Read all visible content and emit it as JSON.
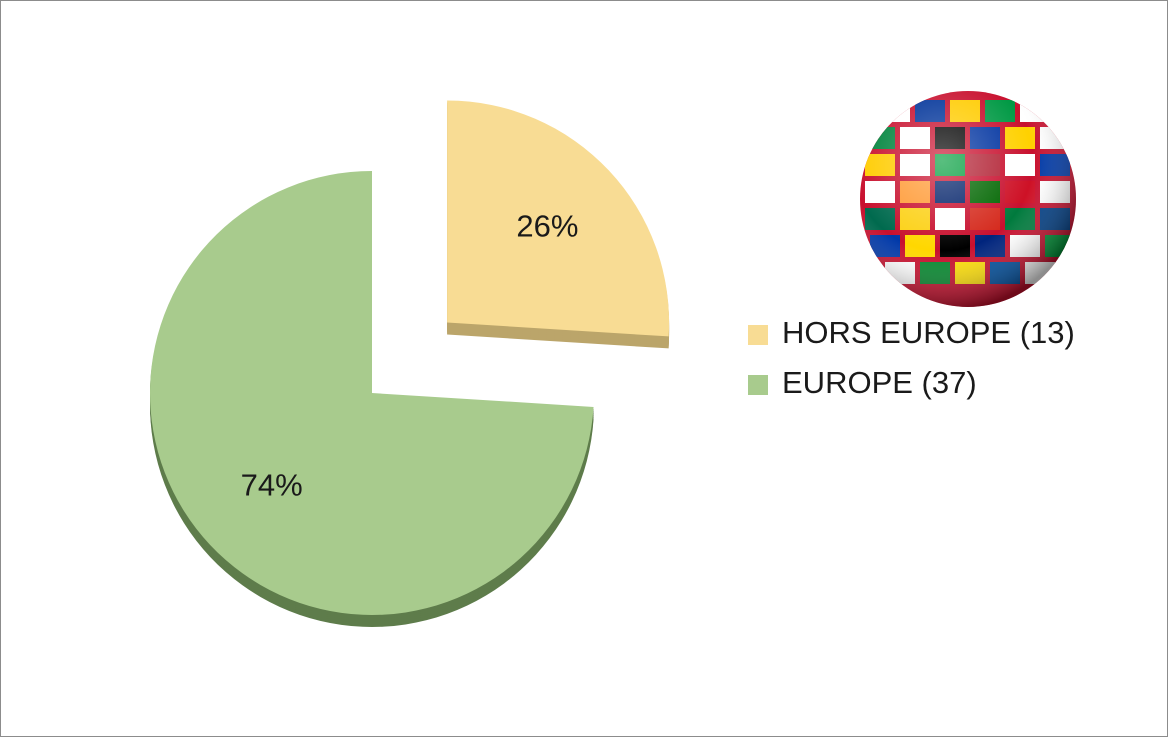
{
  "chart_data": {
    "type": "pie",
    "categories": [
      "HORS EUROPE (13)",
      "EUROPE (37)"
    ],
    "values": [
      26,
      74
    ],
    "value_labels": [
      "26%",
      "74%"
    ],
    "colors": [
      "#f8dc94",
      "#a8cb8d"
    ],
    "side_colors": [
      "#bba56a",
      "#5e7c4b"
    ],
    "explode": [
      true,
      false
    ],
    "legend": "right"
  }
}
